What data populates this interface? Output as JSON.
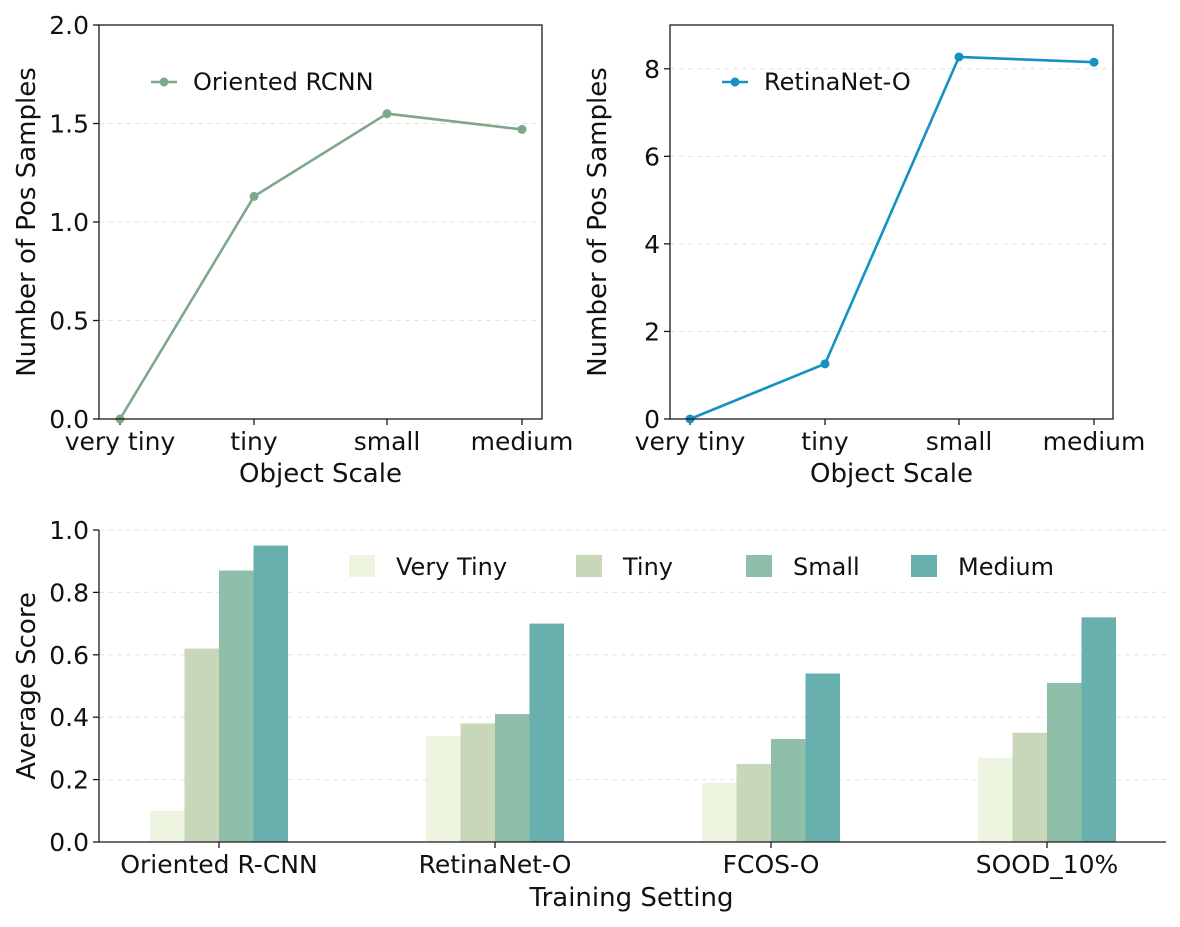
{
  "chart_data": [
    {
      "type": "line",
      "x": [
        "very tiny",
        "tiny",
        "small",
        "medium"
      ],
      "series": [
        {
          "name": "Oriented RCNN",
          "values": [
            0.0,
            1.13,
            1.55,
            1.47
          ],
          "color": "#7fa88a"
        }
      ],
      "xlabel": "Object Scale",
      "ylabel": "Number of Pos Samples",
      "ylim": [
        0,
        2.0
      ],
      "yticks": [
        "0.0",
        "0.5",
        "1.0",
        "1.5",
        "2.0"
      ],
      "grid": true,
      "legend": "upper-left"
    },
    {
      "type": "line",
      "x": [
        "very tiny",
        "tiny",
        "small",
        "medium"
      ],
      "series": [
        {
          "name": "RetinaNet-O",
          "values": [
            0.0,
            1.26,
            8.27,
            8.15
          ],
          "color": "#1592c2"
        }
      ],
      "xlabel": "Object Scale",
      "ylabel": "Number of Pos Samples",
      "ylim": [
        0,
        9
      ],
      "yticks": [
        "0",
        "2",
        "4",
        "6",
        "8"
      ],
      "grid": true,
      "legend": "upper-left"
    },
    {
      "type": "bar",
      "categories": [
        "Oriented R-CNN",
        "RetinaNet-O",
        "FCOS-O",
        "SOOD_10%"
      ],
      "series": [
        {
          "name": "Very Tiny",
          "values": [
            0.1,
            0.34,
            0.19,
            0.27
          ],
          "color": "#edf4df"
        },
        {
          "name": "Tiny",
          "values": [
            0.62,
            0.38,
            0.25,
            0.35
          ],
          "color": "#c8d6b9"
        },
        {
          "name": "Small",
          "values": [
            0.87,
            0.41,
            0.33,
            0.51
          ],
          "color": "#8fbea9"
        },
        {
          "name": "Medium",
          "values": [
            0.95,
            0.7,
            0.54,
            0.72
          ],
          "color": "#67b0ad"
        }
      ],
      "xlabel": "Training Setting",
      "ylabel": "Average Score",
      "ylim": [
        0,
        1.0
      ],
      "yticks": [
        "0.0",
        "0.2",
        "0.4",
        "0.6",
        "0.8",
        "1.0"
      ],
      "grid": true,
      "legend": "top"
    }
  ]
}
